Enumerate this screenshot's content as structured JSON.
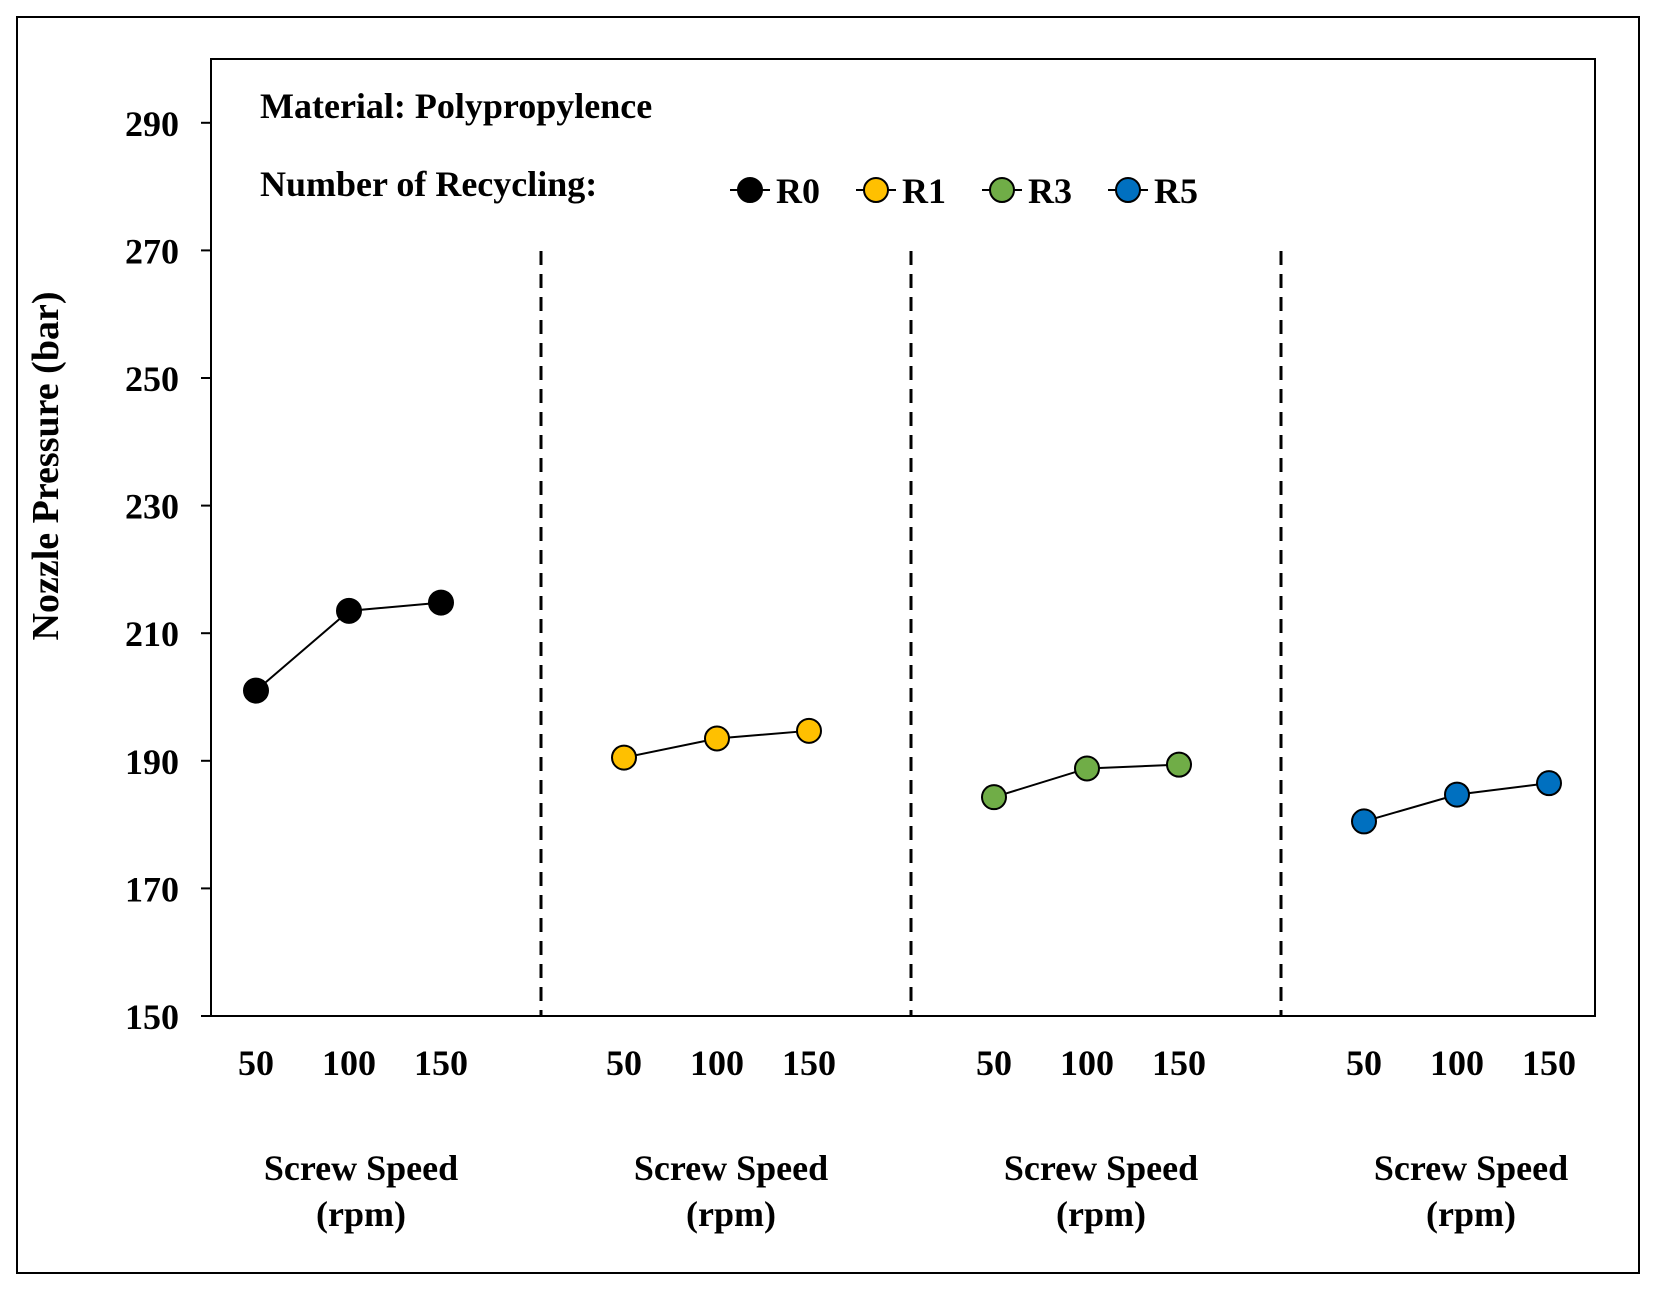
{
  "chart_data": {
    "type": "line",
    "ylabel": "Nozzle Pressure (bar)",
    "ylim": [
      150,
      300
    ],
    "yticks": [
      150,
      170,
      190,
      210,
      230,
      250,
      270,
      290
    ],
    "grid": false,
    "annotations": {
      "material": "Material: Polypropylence",
      "legend_title": "Number of Recycling:"
    },
    "legend_placement": "top",
    "groups": [
      {
        "name": "R0",
        "color": "#000000",
        "categories": [
          "50",
          "100",
          "150"
        ],
        "values": [
          201,
          213.5,
          214.8
        ],
        "xlabel": [
          "Screw Speed",
          "(rpm)"
        ]
      },
      {
        "name": "R1",
        "color": "#FFC000",
        "categories": [
          "50",
          "100",
          "150"
        ],
        "values": [
          190.5,
          193.5,
          194.7
        ],
        "xlabel": [
          "Screw Speed",
          "(rpm)"
        ]
      },
      {
        "name": "R3",
        "color": "#70AD47",
        "categories": [
          "50",
          "100",
          "150"
        ],
        "values": [
          184.3,
          188.8,
          189.4
        ],
        "xlabel": [
          "Screw Speed",
          "(rpm)"
        ]
      },
      {
        "name": "R5",
        "color": "#0070C0",
        "categories": [
          "50",
          "100",
          "150"
        ],
        "values": [
          180.5,
          184.7,
          186.5
        ],
        "xlabel": [
          "Screw Speed",
          "(rpm)"
        ]
      }
    ]
  }
}
